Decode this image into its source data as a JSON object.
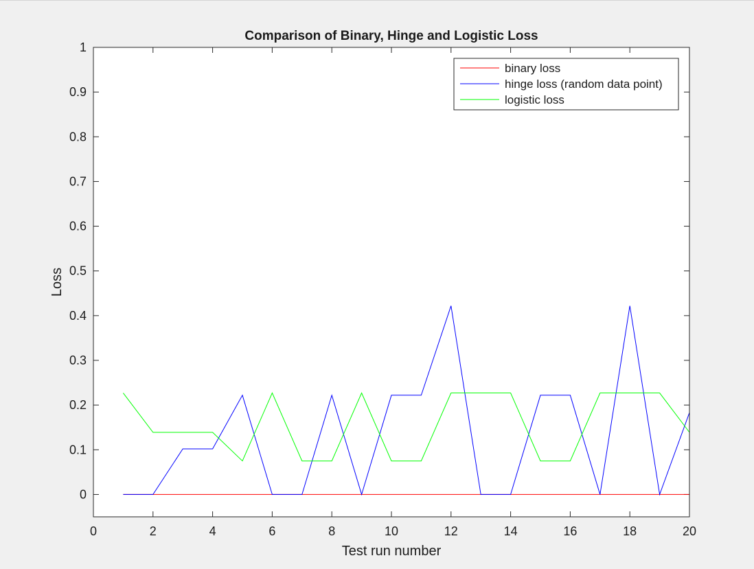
{
  "chart_data": {
    "type": "line",
    "title": "Comparison of Binary, Hinge and Logistic Loss",
    "xlabel": "Test run number",
    "ylabel": "Loss",
    "xlim": [
      0,
      20
    ],
    "ylim": [
      -0.05,
      1
    ],
    "xticks": [
      0,
      2,
      4,
      6,
      8,
      10,
      12,
      14,
      16,
      18,
      20
    ],
    "xtick_labels": [
      "0",
      "2",
      "4",
      "6",
      "8",
      "10",
      "12",
      "14",
      "16",
      "18",
      "20"
    ],
    "yticks": [
      0,
      0.1,
      0.2,
      0.3,
      0.4,
      0.5,
      0.6,
      0.7,
      0.8,
      0.9,
      1
    ],
    "ytick_labels": [
      "0",
      "0.1",
      "0.2",
      "0.3",
      "0.4",
      "0.5",
      "0.6",
      "0.7",
      "0.8",
      "0.9",
      "1"
    ],
    "grid": false,
    "legend_position": "top-right",
    "x": [
      1,
      2,
      3,
      4,
      5,
      6,
      7,
      8,
      9,
      10,
      11,
      12,
      13,
      14,
      15,
      16,
      17,
      18,
      19,
      20
    ],
    "series": [
      {
        "name": "binary loss",
        "color": "#ff0000",
        "values": [
          0,
          0,
          0,
          0,
          0,
          0,
          0,
          0,
          0,
          0,
          0,
          0,
          0,
          0,
          0,
          0,
          0,
          0,
          0,
          0
        ]
      },
      {
        "name": "hinge loss (random data point)",
        "color": "#0000ff",
        "values": [
          0,
          0,
          0.102,
          0.102,
          0.222,
          0,
          0,
          0.222,
          0,
          0.222,
          0.222,
          0.422,
          0,
          0,
          0.222,
          0.222,
          0,
          0.422,
          0,
          0.183
        ]
      },
      {
        "name": "logistic loss",
        "color": "#00ff00",
        "values": [
          0.227,
          0.139,
          0.139,
          0.139,
          0.075,
          0.227,
          0.075,
          0.075,
          0.227,
          0.075,
          0.075,
          0.227,
          0.227,
          0.227,
          0.075,
          0.075,
          0.227,
          0.227,
          0.227,
          0.139
        ]
      }
    ]
  }
}
